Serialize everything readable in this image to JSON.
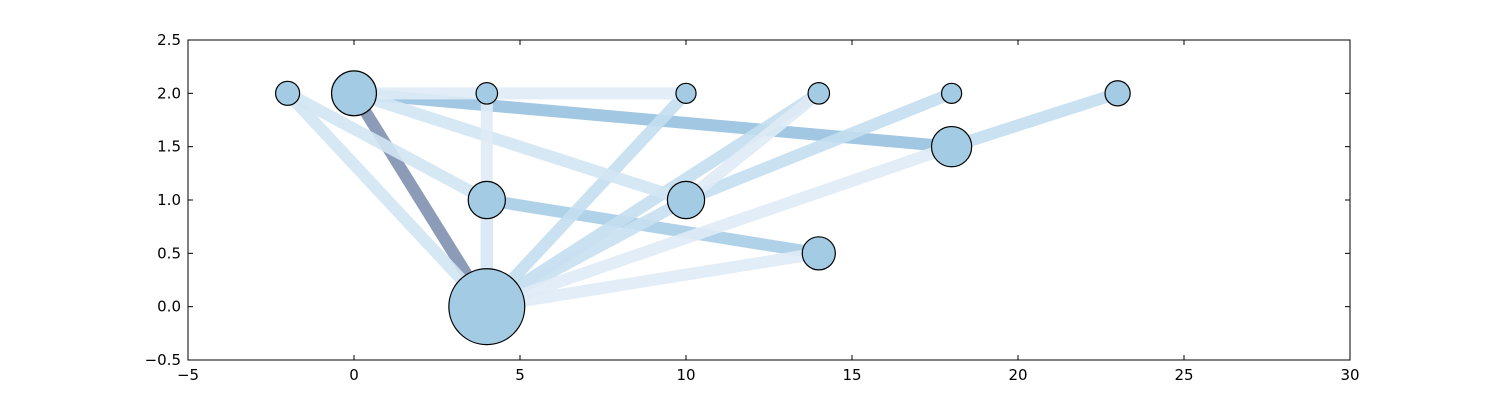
{
  "chart_data": {
    "type": "scatter",
    "title": "",
    "xlabel": "",
    "ylabel": "",
    "xlim": [
      -5,
      30
    ],
    "ylim": [
      -0.5,
      2.5
    ],
    "grid": false,
    "xticks": [
      -5,
      0,
      5,
      10,
      15,
      20,
      25,
      30
    ],
    "yticks": [
      -0.5,
      0.0,
      0.5,
      1.0,
      1.5,
      2.0,
      2.5
    ],
    "xtick_labels": [
      "−5",
      "0",
      "5",
      "10",
      "15",
      "20",
      "25",
      "30"
    ],
    "ytick_labels": [
      "−0.5",
      "0.0",
      "0.5",
      "1.0",
      "1.5",
      "2.0",
      "2.5"
    ],
    "node_color": "#a3cbe3",
    "nodes": [
      {
        "id": "n0",
        "x": -2,
        "y": 2.0,
        "size": 1
      },
      {
        "id": "n1",
        "x": 0,
        "y": 2.0,
        "size": 3.5
      },
      {
        "id": "n2",
        "x": 4,
        "y": 2.0,
        "size": 0.8
      },
      {
        "id": "n3",
        "x": 10,
        "y": 2.0,
        "size": 0.7
      },
      {
        "id": "n4",
        "x": 14,
        "y": 2.0,
        "size": 0.8
      },
      {
        "id": "n5",
        "x": 18,
        "y": 2.0,
        "size": 0.7
      },
      {
        "id": "n6",
        "x": 23,
        "y": 2.0,
        "size": 1.1
      },
      {
        "id": "n7",
        "x": 18,
        "y": 1.5,
        "size": 2.8
      },
      {
        "id": "n8",
        "x": 4,
        "y": 1.0,
        "size": 2.4
      },
      {
        "id": "n9",
        "x": 10,
        "y": 1.0,
        "size": 2.4
      },
      {
        "id": "n10",
        "x": 14,
        "y": 0.5,
        "size": 1.9
      },
      {
        "id": "n11",
        "x": 4,
        "y": 0.0,
        "size": 10
      }
    ],
    "edges": [
      {
        "source": "n1",
        "target": "n11",
        "color": "#8090b0"
      },
      {
        "source": "n1",
        "target": "n7",
        "color": "#97c1e0"
      },
      {
        "source": "n8",
        "target": "n10",
        "color": "#a7cde5"
      },
      {
        "source": "n8",
        "target": "n11",
        "color": "#a7cde5"
      },
      {
        "source": "n6",
        "target": "n7",
        "color": "#c3def0"
      },
      {
        "source": "n4",
        "target": "n11",
        "color": "#c3def0"
      },
      {
        "source": "n5",
        "target": "n9",
        "color": "#c3def0"
      },
      {
        "source": "n3",
        "target": "n11",
        "color": "#c3def0"
      },
      {
        "source": "n0",
        "target": "n11",
        "color": "#d2e5f3"
      },
      {
        "source": "n1",
        "target": "n9",
        "color": "#d2e5f3"
      },
      {
        "source": "n0",
        "target": "n8",
        "color": "#d2e5f3"
      },
      {
        "source": "n9",
        "target": "n11",
        "color": "#c8e0f1"
      },
      {
        "source": "n1",
        "target": "n3",
        "color": "#dfebf6"
      },
      {
        "source": "n2",
        "target": "n11",
        "color": "#dfebf6"
      },
      {
        "source": "n7",
        "target": "n11",
        "color": "#dfebf6"
      },
      {
        "source": "n10",
        "target": "n11",
        "color": "#dfebf6"
      },
      {
        "source": "n4",
        "target": "n9",
        "color": "#dfebf6"
      }
    ]
  }
}
